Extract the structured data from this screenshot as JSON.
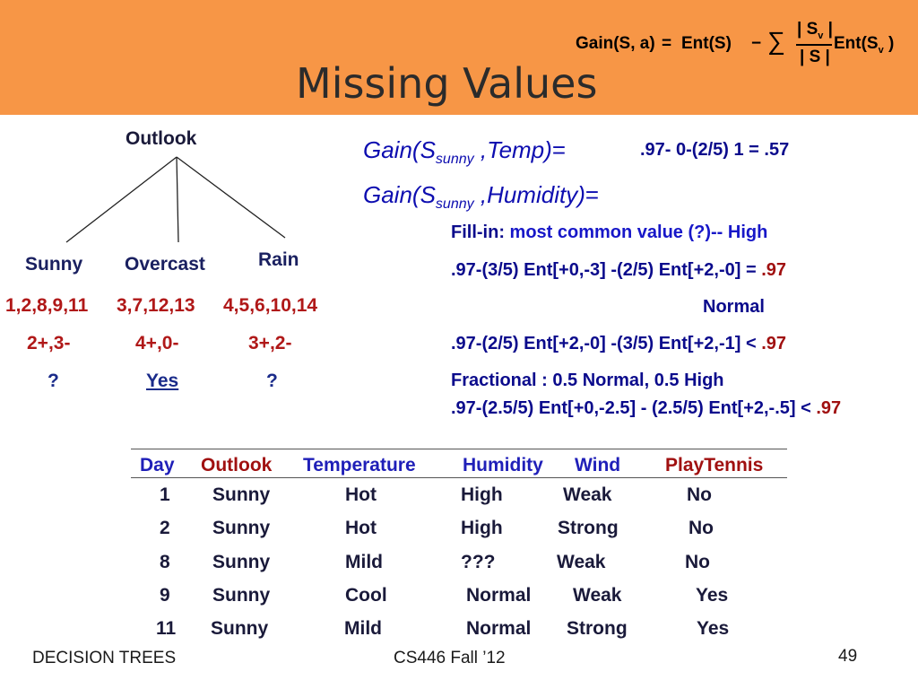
{
  "header": {
    "title": "Missing Values",
    "formula": {
      "lhs": "Gain(S, a)",
      "eq": "=",
      "ent": "Ent(S)",
      "minus": "−",
      "sum": "∑",
      "num": "| S",
      "num_sub": "v",
      "num_end": " |",
      "den": "| S |",
      "ent2": "Ent(S",
      "ent2_sub": "v",
      "ent2_end": " )"
    }
  },
  "tree": {
    "root": "Outlook",
    "branches": [
      "Sunny",
      "Overcast",
      "Rain"
    ],
    "examples": [
      "1,2,8,9,11",
      "3,7,12,13",
      "4,5,6,10,14"
    ],
    "counts": [
      "2+,3-",
      "4+,0-",
      "3+,2-"
    ],
    "outcomes": [
      "?",
      "Yes",
      "?"
    ]
  },
  "gains": {
    "temp": {
      "pre": "Gain(S",
      "sub": "sunny",
      "post": " ,Temp)",
      "eq": "=",
      "value": ".97- 0-(2/5) 1 = .57"
    },
    "humidity": {
      "pre": "Gain(S",
      "sub": "sunny",
      "post": " ,Humidity)",
      "eq": "="
    },
    "fill_in": {
      "label": "Fill-in: ",
      "text": "most common value (?)-- High"
    },
    "line1": {
      "text": ".97-(3/5) Ent[+0,-3] -(2/5) Ent[+2,-0] = ",
      "end": ".97"
    },
    "normal": "Normal",
    "line2": {
      "text": ".97-(2/5) Ent[+2,-0] -(3/5) Ent[+2,-1] < ",
      "end": ".97"
    },
    "fractional": "Fractional : 0.5  Normal, 0.5 High",
    "line3": {
      "text": ".97-(2.5/5) Ent[+0,-2.5] - (2.5/5) Ent[+2,-.5] < ",
      "end": ".97"
    }
  },
  "table": {
    "headers": [
      "Day",
      "Outlook",
      "Temperature",
      "Humidity",
      "Wind",
      "PlayTennis"
    ],
    "rows": [
      [
        "1",
        "Sunny",
        "Hot",
        "High",
        "Weak",
        "No"
      ],
      [
        "2",
        "Sunny",
        "Hot",
        "High",
        "Strong",
        "No"
      ],
      [
        "8",
        "Sunny",
        "Mild",
        "???",
        "Weak",
        "No"
      ],
      [
        "9",
        "Sunny",
        "Cool",
        "Normal",
        "Weak",
        "Yes"
      ],
      [
        "11",
        "Sunny",
        "Mild",
        "Normal",
        "Strong",
        "Yes"
      ]
    ]
  },
  "footer": {
    "left": "DECISION TREES",
    "center": "CS446 Fall ’12",
    "page": "49"
  },
  "colors": {
    "header_bg": "#f79646",
    "blue_text": "#0d0db0",
    "red_text": "#a01010"
  }
}
